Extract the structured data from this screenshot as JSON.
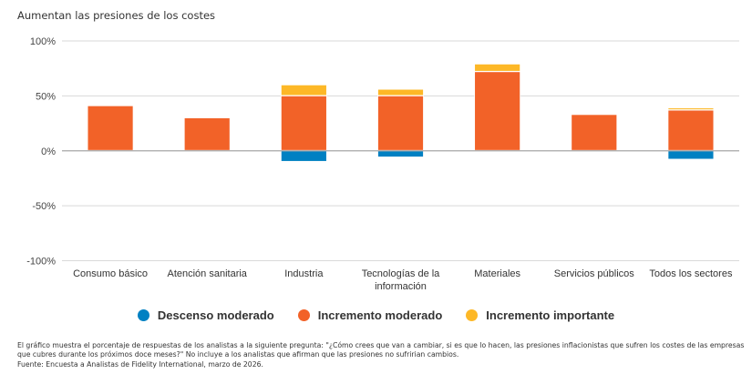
{
  "chart_data": {
    "type": "bar",
    "stacked": true,
    "title": "Aumentan las presiones de los costes",
    "xlabel": "",
    "ylabel": "",
    "ylim": [
      -100,
      100
    ],
    "yticks": [
      100,
      50,
      0,
      -50,
      -100
    ],
    "ytick_labels": [
      "100%",
      "50%",
      "0%",
      "-50%",
      "-100%"
    ],
    "grid": true,
    "legend_position": "bottom",
    "categories": [
      [
        "Consumo básico"
      ],
      [
        "Atención sanitaria"
      ],
      [
        "Industria"
      ],
      [
        "Tecnologías de la",
        "información"
      ],
      [
        "Materiales"
      ],
      [
        "Servicios públicos"
      ],
      [
        "Todos los sectores"
      ]
    ],
    "series": [
      {
        "name": "Descenso moderado",
        "color": "#0080C2",
        "values": [
          0,
          0,
          -10,
          -6,
          0,
          0,
          -8
        ]
      },
      {
        "name": "Incremento moderado",
        "color": "#F26228",
        "values": [
          41,
          30,
          50,
          50,
          72,
          33,
          37
        ]
      },
      {
        "name": "Incremento importante",
        "color": "#FDB827",
        "values": [
          0,
          0,
          10,
          6,
          7,
          0,
          2
        ]
      }
    ]
  },
  "footnote": {
    "lines": [
      "El gráfico muestra el porcentaje de respuestas de los analistas a la siguiente pregunta: \"¿Cómo crees que van a cambiar, si es que lo hacen, las presiones inflacionistas que sufren los costes de las empresas",
      "que cubres durante los próximos doce meses?\" No incluye a los analistas que afirman que las presiones no sufririan cambios.",
      "Fuente: Encuesta a Analistas de Fidelity International, marzo de 2026."
    ]
  }
}
